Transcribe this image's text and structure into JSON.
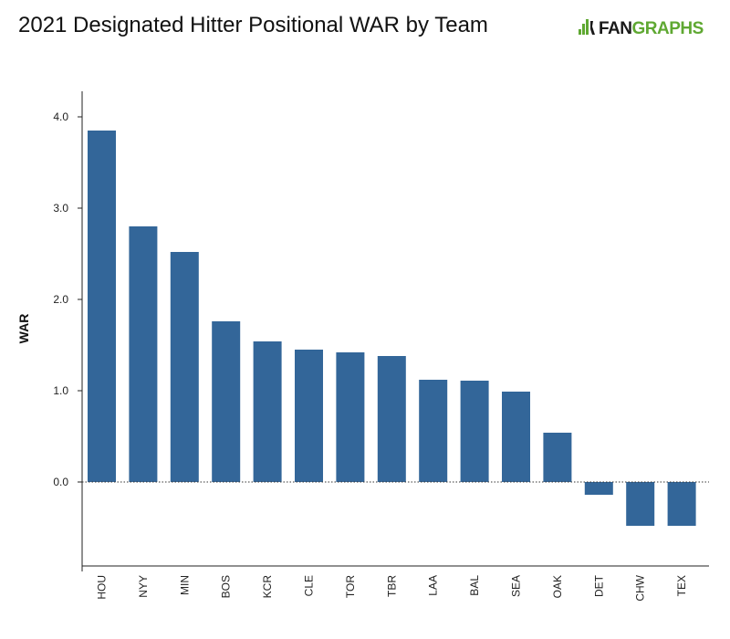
{
  "title": "2021 Designated Hitter Positional WAR by Team",
  "brand": {
    "part1": "FAN",
    "part2": "GRAPHS",
    "accent_color": "#5fa832"
  },
  "chart_data": {
    "type": "bar",
    "title": "2021 Designated Hitter Positional WAR by Team",
    "xlabel": "",
    "ylabel": "WAR",
    "ylim": [
      -0.9,
      4.3
    ],
    "yticks": [
      "0.0",
      "1.0",
      "2.0",
      "3.0",
      "4.0"
    ],
    "grid": false,
    "bar_color": "#336699",
    "categories": [
      "HOU",
      "NYY",
      "MIN",
      "BOS",
      "KCR",
      "CLE",
      "TOR",
      "TBR",
      "LAA",
      "BAL",
      "SEA",
      "OAK",
      "DET",
      "CHW",
      "TEX"
    ],
    "values": [
      3.85,
      2.8,
      2.52,
      1.76,
      1.54,
      1.45,
      1.42,
      1.38,
      1.12,
      1.11,
      0.99,
      0.54,
      -0.14,
      -0.48,
      -0.48
    ]
  }
}
